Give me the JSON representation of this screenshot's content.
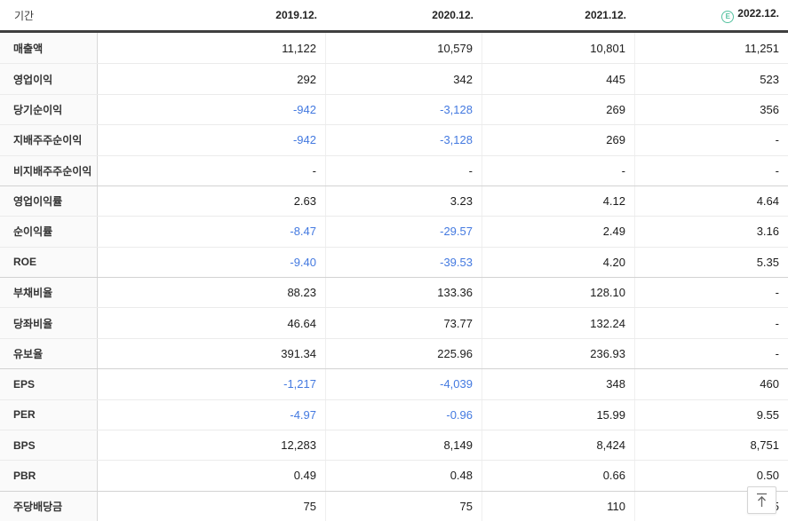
{
  "table": {
    "header": {
      "period_label": "기간",
      "estimate_marker": "E",
      "columns": [
        {
          "label": "2019.12.",
          "estimate": false
        },
        {
          "label": "2020.12.",
          "estimate": false
        },
        {
          "label": "2021.12.",
          "estimate": false
        },
        {
          "label": "2022.12.",
          "estimate": true
        }
      ]
    },
    "rows": [
      {
        "label": "매출액",
        "values": [
          "11,122",
          "10,579",
          "10,801",
          "11,251"
        ],
        "group_start": false
      },
      {
        "label": "영업이익",
        "values": [
          "292",
          "342",
          "445",
          "523"
        ],
        "group_start": false
      },
      {
        "label": "당기순이익",
        "values": [
          "-942",
          "-3,128",
          "269",
          "356"
        ],
        "group_start": false
      },
      {
        "label": "지배주주순이익",
        "values": [
          "-942",
          "-3,128",
          "269",
          "-"
        ],
        "group_start": false
      },
      {
        "label": "비지배주주순이익",
        "values": [
          "-",
          "-",
          "-",
          "-"
        ],
        "group_start": false
      },
      {
        "label": "영업이익률",
        "values": [
          "2.63",
          "3.23",
          "4.12",
          "4.64"
        ],
        "group_start": true
      },
      {
        "label": "순이익률",
        "values": [
          "-8.47",
          "-29.57",
          "2.49",
          "3.16"
        ],
        "group_start": false
      },
      {
        "label": "ROE",
        "values": [
          "-9.40",
          "-39.53",
          "4.20",
          "5.35"
        ],
        "group_start": false
      },
      {
        "label": "부채비율",
        "values": [
          "88.23",
          "133.36",
          "128.10",
          "-"
        ],
        "group_start": true
      },
      {
        "label": "당좌비율",
        "values": [
          "46.64",
          "73.77",
          "132.24",
          "-"
        ],
        "group_start": false
      },
      {
        "label": "유보율",
        "values": [
          "391.34",
          "225.96",
          "236.93",
          "-"
        ],
        "group_start": false
      },
      {
        "label": "EPS",
        "values": [
          "-1,217",
          "-4,039",
          "348",
          "460"
        ],
        "group_start": true
      },
      {
        "label": "PER",
        "values": [
          "-4.97",
          "-0.96",
          "15.99",
          "9.55"
        ],
        "group_start": false
      },
      {
        "label": "BPS",
        "values": [
          "12,283",
          "8,149",
          "8,424",
          "8,751"
        ],
        "group_start": false
      },
      {
        "label": "PBR",
        "values": [
          "0.49",
          "0.48",
          "0.66",
          "0.50"
        ],
        "group_start": false
      },
      {
        "label": "주당배당금",
        "values": [
          "75",
          "75",
          "110",
          "75"
        ],
        "group_start": true
      }
    ]
  },
  "scroll_top_button": {
    "icon": "arrow-up-to-top"
  },
  "colors": {
    "negative_value": "#4379e0",
    "estimate_icon": "#56c2a0",
    "header_divider": "#3f3f3f",
    "label_column_bg": "#fafafa"
  }
}
